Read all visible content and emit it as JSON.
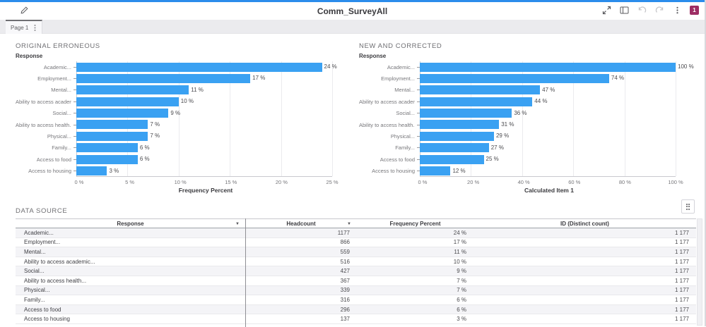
{
  "app": {
    "title": "Comm_SurveyAll",
    "tab": {
      "label": "Page 1"
    },
    "toolbar": {
      "badge_count": "1"
    }
  },
  "colors": {
    "accent_blue": "#2b8ceb",
    "bar_blue": "#3aa1f2",
    "badge_magenta": "#9d2d64"
  },
  "icons": [
    "edit-pencil",
    "expand",
    "report-layout",
    "undo",
    "redo",
    "more-vertical",
    "alert-badge",
    "object-menu",
    "sort-arrow"
  ],
  "chart_data": [
    {
      "type": "bar",
      "orientation": "horizontal",
      "title": "ORIGINAL ERRONEOUS",
      "ylabel": "Response",
      "xlabel": "Frequency Percent",
      "categories": [
        "Academic...",
        "Employment...",
        "Mental...",
        "Ability to access academic...",
        "Social...",
        "Ability to access health...",
        "Physical...",
        "Family...",
        "Access to food",
        "Access to housing"
      ],
      "values": [
        24,
        17,
        11,
        10,
        9,
        7,
        7,
        6,
        6,
        3
      ],
      "value_labels": [
        "24 %",
        "17 %",
        "11 %",
        "10 %",
        "9 %",
        "7 %",
        "7 %",
        "6 %",
        "6 %",
        "3 %"
      ],
      "xlim": [
        0,
        25
      ],
      "tick_labels": [
        "0 %",
        "5 %",
        "10 %",
        "15 %",
        "20 %",
        "25 %"
      ],
      "grid": true,
      "legend": false
    },
    {
      "type": "bar",
      "orientation": "horizontal",
      "title": "NEW AND CORRECTED",
      "ylabel": "Response",
      "xlabel": "Calculated Item 1",
      "categories": [
        "Academic...",
        "Employment...",
        "Mental...",
        "Ability to access academic...",
        "Social...",
        "Ability to access health...",
        "Physical...",
        "Family...",
        "Access to food",
        "Access to housing"
      ],
      "values": [
        100,
        74,
        47,
        44,
        36,
        31,
        29,
        27,
        25,
        12
      ],
      "value_labels": [
        "100 %",
        "74 %",
        "47 %",
        "44 %",
        "36 %",
        "31 %",
        "29 %",
        "27 %",
        "25 %",
        "12 %"
      ],
      "xlim": [
        0,
        100
      ],
      "tick_labels": [
        "0 %",
        "20 %",
        "40 %",
        "60 %",
        "80 %",
        "100 %"
      ],
      "grid": true,
      "legend": false
    }
  ],
  "table": {
    "title": "DATA SOURCE",
    "columns": [
      {
        "label": "Response",
        "sortable": true
      },
      {
        "label": "Headcount",
        "sortable": true
      },
      {
        "label": "Frequency Percent",
        "sortable": false
      },
      {
        "label": "ID (Distinct count)",
        "sortable": false
      }
    ],
    "rows": [
      [
        "Academic...",
        "1177",
        "24 %",
        "1 177"
      ],
      [
        "Employment...",
        "866",
        "17 %",
        "1 177"
      ],
      [
        "Mental...",
        "559",
        "11 %",
        "1 177"
      ],
      [
        "Ability to access academic...",
        "516",
        "10 %",
        "1 177"
      ],
      [
        "Social...",
        "427",
        "9 %",
        "1 177"
      ],
      [
        "Ability to access health...",
        "367",
        "7 %",
        "1 177"
      ],
      [
        "Physical...",
        "339",
        "7 %",
        "1 177"
      ],
      [
        "Family...",
        "316",
        "6 %",
        "1 177"
      ],
      [
        "Access to food",
        "296",
        "6 %",
        "1 177"
      ],
      [
        "Access to housing",
        "137",
        "3 %",
        "1 177"
      ]
    ]
  }
}
